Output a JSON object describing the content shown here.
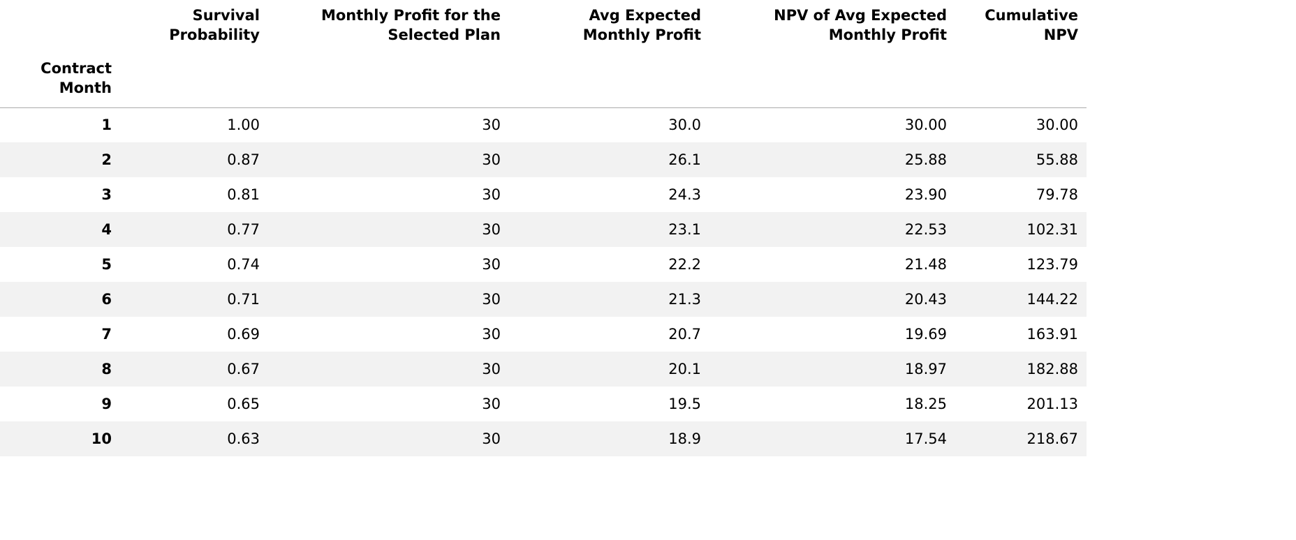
{
  "table": {
    "columns": [
      "Survival Probability",
      "Monthly Profit for the Selected Plan",
      "Avg Expected Monthly Profit",
      "NPV of Avg Expected Monthly Profit",
      "Cumulative NPV"
    ],
    "index_name": "Contract Month",
    "rows": [
      {
        "index": "1",
        "values": [
          "1.00",
          "30",
          "30.0",
          "30.00",
          "30.00"
        ]
      },
      {
        "index": "2",
        "values": [
          "0.87",
          "30",
          "26.1",
          "25.88",
          "55.88"
        ]
      },
      {
        "index": "3",
        "values": [
          "0.81",
          "30",
          "24.3",
          "23.90",
          "79.78"
        ]
      },
      {
        "index": "4",
        "values": [
          "0.77",
          "30",
          "23.1",
          "22.53",
          "102.31"
        ]
      },
      {
        "index": "5",
        "values": [
          "0.74",
          "30",
          "22.2",
          "21.48",
          "123.79"
        ]
      },
      {
        "index": "6",
        "values": [
          "0.71",
          "30",
          "21.3",
          "20.43",
          "144.22"
        ]
      },
      {
        "index": "7",
        "values": [
          "0.69",
          "30",
          "20.7",
          "19.69",
          "163.91"
        ]
      },
      {
        "index": "8",
        "values": [
          "0.67",
          "30",
          "20.1",
          "18.97",
          "182.88"
        ]
      },
      {
        "index": "9",
        "values": [
          "0.65",
          "30",
          "19.5",
          "18.25",
          "201.13"
        ]
      },
      {
        "index": "10",
        "values": [
          "0.63",
          "30",
          "18.9",
          "17.54",
          "218.67"
        ]
      }
    ]
  }
}
